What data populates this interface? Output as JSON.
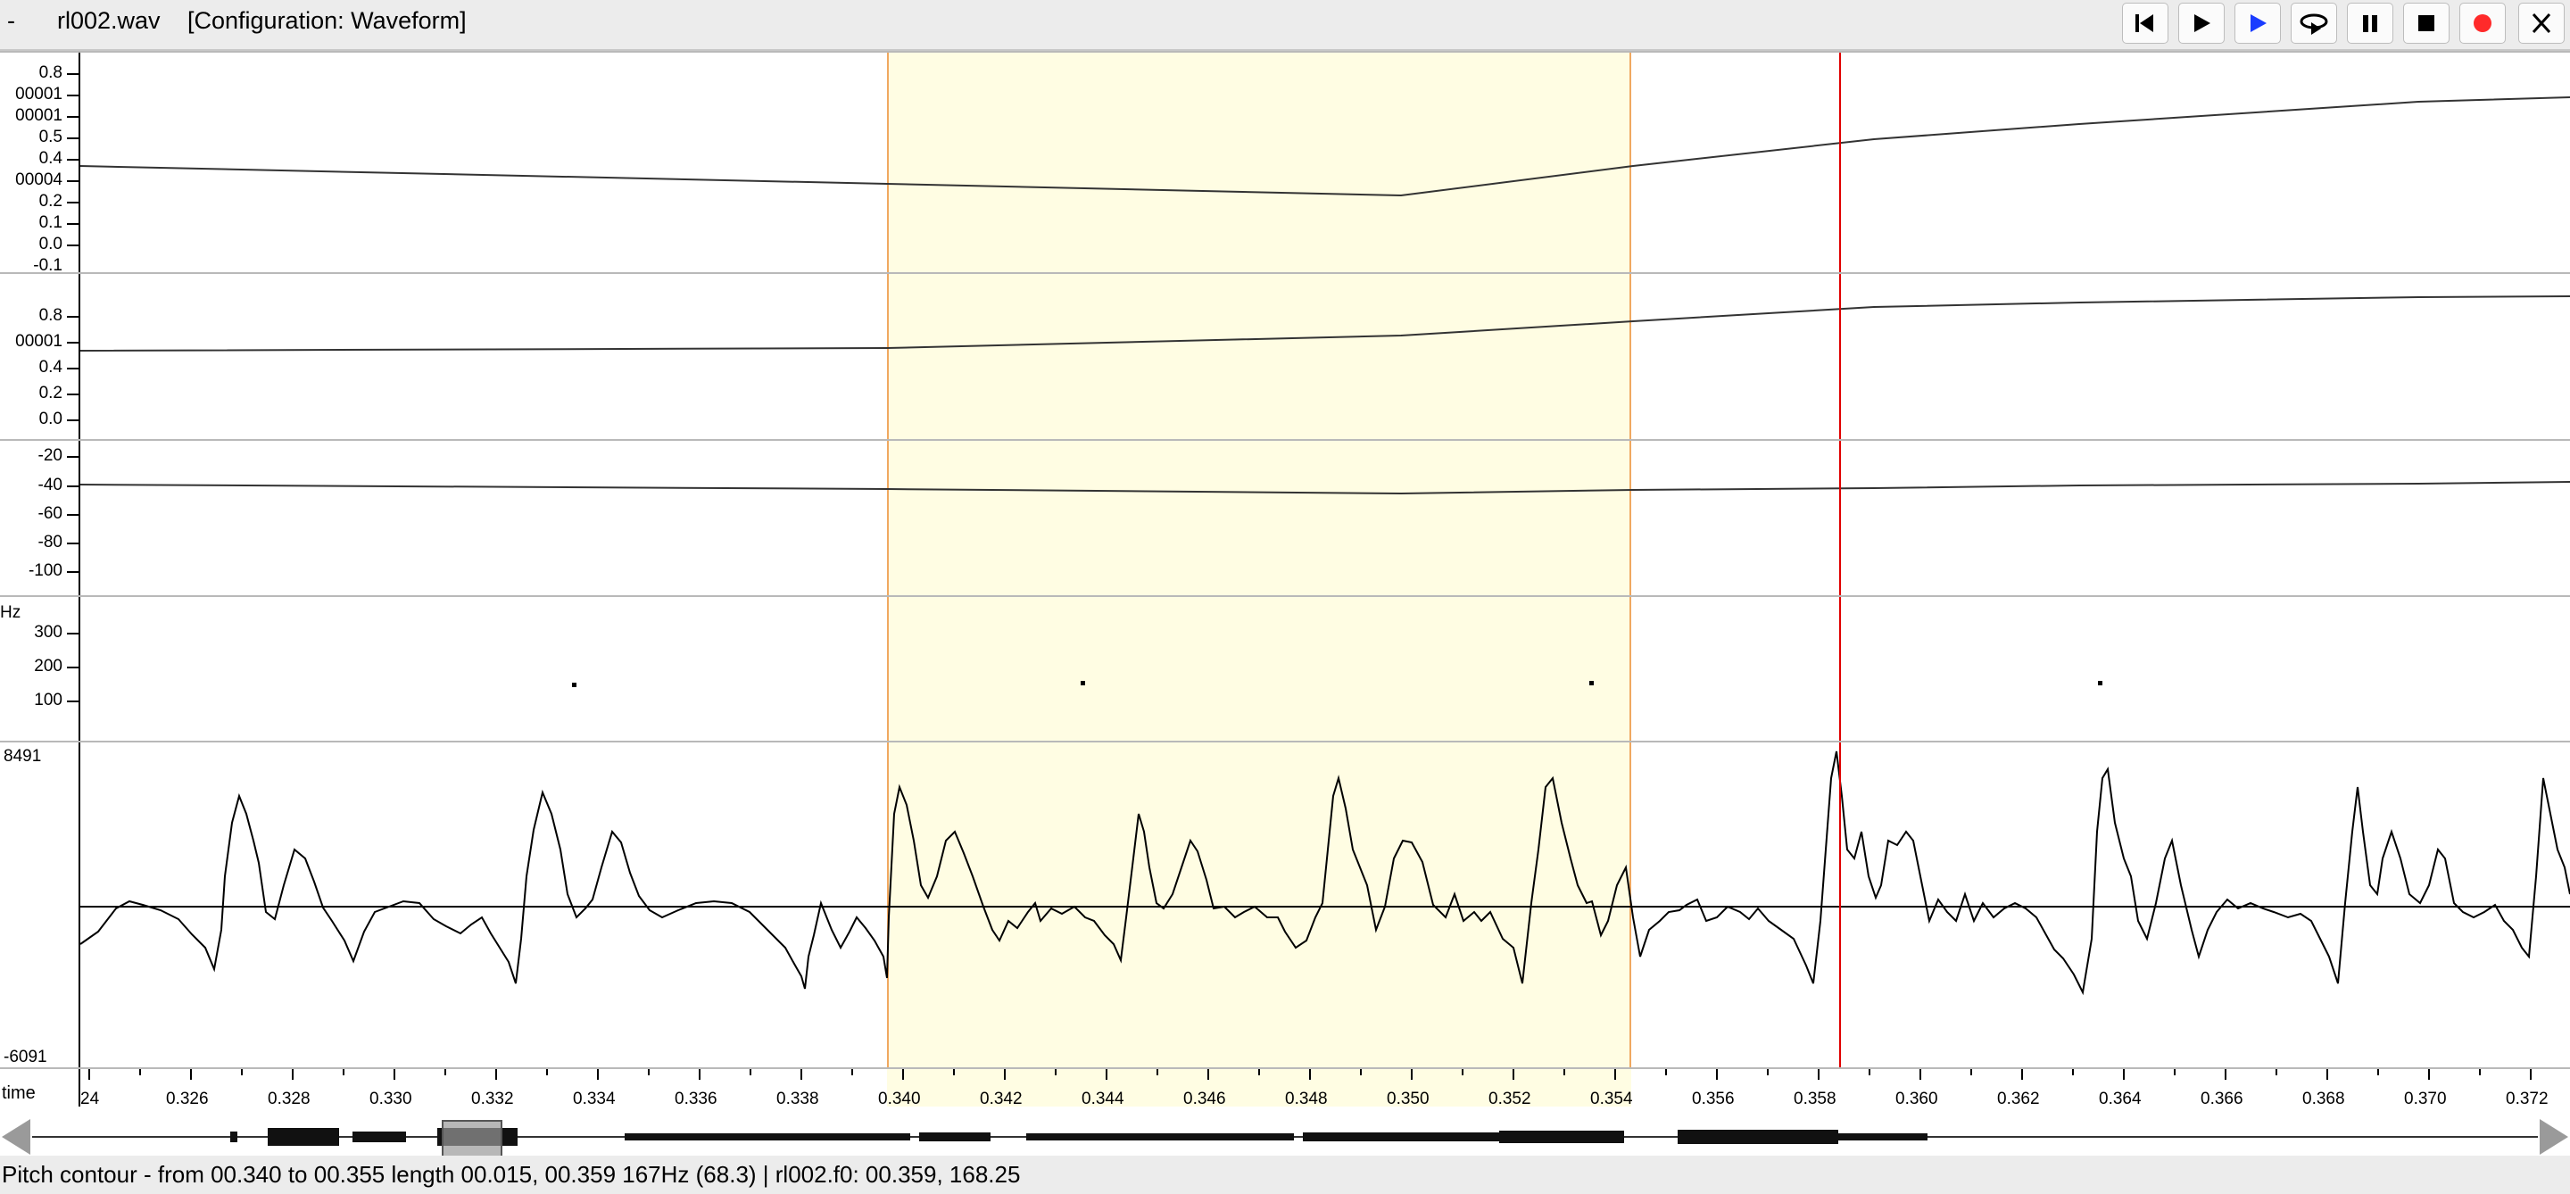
{
  "window": {
    "dash": "-",
    "filename": "rl002.wav",
    "configuration": "[Configuration: Waveform]"
  },
  "toolbar": {
    "buttons": [
      {
        "name": "skip-to-start",
        "icon": "skip-back-icon"
      },
      {
        "name": "play",
        "icon": "play-icon"
      },
      {
        "name": "play-selection",
        "icon": "play-selection-icon"
      },
      {
        "name": "loop",
        "icon": "loop-icon"
      },
      {
        "name": "pause",
        "icon": "pause-icon"
      },
      {
        "name": "stop",
        "icon": "stop-icon"
      },
      {
        "name": "record",
        "icon": "record-icon"
      },
      {
        "name": "close",
        "icon": "close-icon"
      }
    ],
    "colors": {
      "play_selection": "#1a3cff",
      "record": "#ff2a2a"
    }
  },
  "panels": {
    "track1": {
      "labels": [
        "0.8",
        "00001",
        "00001",
        "0.5",
        "0.4",
        "00004",
        "0.2",
        "0.1",
        "0.0",
        "-0.1"
      ]
    },
    "track2": {
      "labels": [
        "0.8",
        "00001",
        "0.4",
        "0.2",
        "0.0"
      ]
    },
    "track3": {
      "labels": [
        "-20",
        "-40",
        "-60",
        "-80",
        "-100"
      ]
    },
    "pitch": {
      "unit": "Hz",
      "labels": [
        "300",
        "200",
        "100"
      ]
    },
    "waveform": {
      "max": "8491",
      "min": "-6091"
    }
  },
  "time_axis": {
    "label": "time",
    "ticks": [
      "24",
      "0.326",
      "0.328",
      "0.330",
      "0.332",
      "0.334",
      "0.336",
      "0.338",
      "0.340",
      "0.342",
      "0.344",
      "0.346",
      "0.348",
      "0.350",
      "0.352",
      "0.354",
      "0.356",
      "0.358",
      "0.360",
      "0.362",
      "0.364",
      "0.366",
      "0.368",
      "0.370",
      "0.372"
    ]
  },
  "selection": {
    "start": "0.340",
    "end": "0.355",
    "color": "#fffde3",
    "border": "#f0a860"
  },
  "cursor": {
    "time": "0.359",
    "color": "#e00000"
  },
  "status": {
    "text": "Pitch contour - from 00.340 to 00.355 length 00.015, 00.359 167Hz  (68.3) | rl002.f0: 00.359, 168.25"
  }
}
